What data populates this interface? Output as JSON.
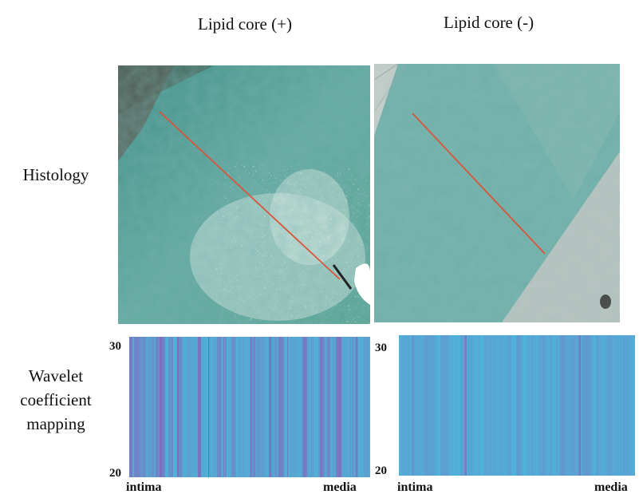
{
  "columns": [
    {
      "title": "Lipid core (+)"
    },
    {
      "title": "Lipid core (-)"
    }
  ],
  "rows": {
    "histology": {
      "label": "Histology"
    },
    "wavelet": {
      "label_lines": [
        "Wavelet",
        "coefficient",
        "mapping"
      ]
    }
  },
  "wavelet_axis": {
    "y_top": "30",
    "y_bottom": "20",
    "x_left": "intima",
    "x_right": "media"
  },
  "colors": {
    "histology_stain": "#4f9a8f",
    "histology_background": "#b9c4c0",
    "scan_line": "#d8553a",
    "wavelet_base": "#4fb2d8",
    "wavelet_high": "#8a5fb8"
  }
}
